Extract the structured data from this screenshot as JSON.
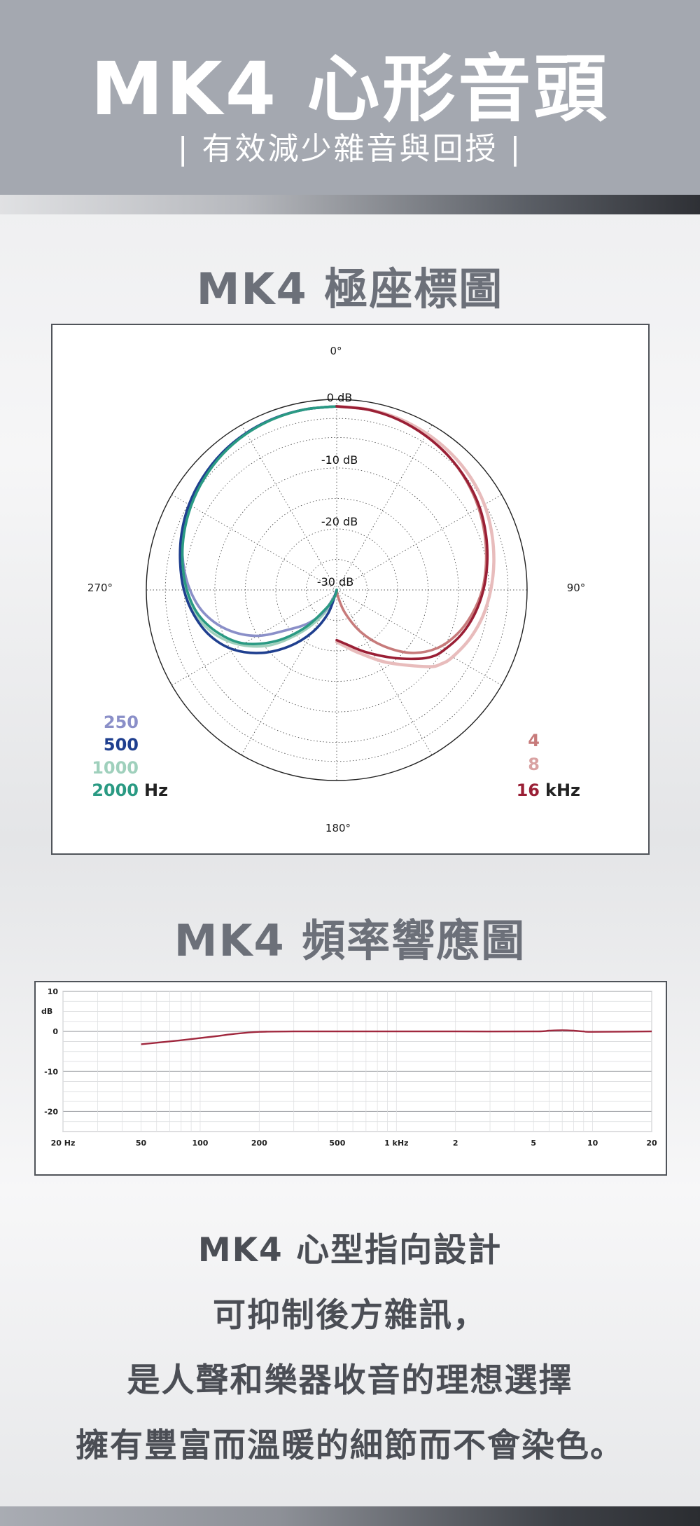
{
  "header": {
    "title": "MK4 心形音頭",
    "subtitle": "| 有效減少雜音與回授 |"
  },
  "sections": {
    "polar_title": "MK4 極座標圖",
    "freq_title": "MK4 頻率響應圖"
  },
  "captions": [
    "MK4 心型指向設計",
    "可抑制後方雜訊，",
    "是人聲和樂器收音的理想選擇",
    "擁有豐富而溫暖的細節而不會染色。"
  ],
  "colors": {
    "hz_250": "#8a8fc8",
    "hz_500": "#1f3f8f",
    "hz_1000": "#9fd0bc",
    "hz_2000": "#2a9a83",
    "khz_4": "#c77b7b",
    "khz_8": "#e8bcbc",
    "khz_16": "#9a1f35",
    "freq_line": "#a0283e"
  },
  "chart_data": [
    {
      "type": "polar",
      "angle_labels": [
        "0°",
        "90°",
        "180°",
        "270°"
      ],
      "radial_labels": [
        "0 dB",
        "-10 dB",
        "-20 dB",
        "-30 dB"
      ],
      "rlim_db": [
        -30,
        0
      ],
      "grid": true,
      "legend_left": {
        "entries": [
          "250",
          "500",
          "1000",
          "2000"
        ],
        "unit": "Hz",
        "placement": "bottom-left"
      },
      "legend_right": {
        "entries": [
          "4",
          "8",
          "16"
        ],
        "unit": "kHz",
        "placement": "bottom-right"
      },
      "series": [
        {
          "name": "250",
          "side": "left",
          "angles": [
            180,
            200,
            210,
            220,
            230,
            240,
            250,
            260,
            270,
            280,
            290,
            300,
            310,
            320,
            330,
            340,
            350,
            360
          ],
          "db": [
            -30,
            -29,
            -26,
            -23,
            -20,
            -15,
            -11,
            -8,
            -6,
            -4.5,
            -3.2,
            -2.2,
            -1.4,
            -0.8,
            -0.4,
            -0.15,
            -0.05,
            0
          ]
        },
        {
          "name": "500",
          "side": "left",
          "angles": [
            180,
            200,
            210,
            220,
            230,
            240,
            250,
            260,
            270,
            280,
            290,
            300,
            310,
            320,
            330,
            340,
            350,
            360
          ],
          "db": [
            -30,
            -26,
            -22,
            -18,
            -14,
            -10.5,
            -8,
            -6.3,
            -5,
            -4,
            -3,
            -2.1,
            -1.4,
            -0.8,
            -0.4,
            -0.15,
            -0.05,
            0
          ]
        },
        {
          "name": "1000",
          "side": "left",
          "angles": [
            180,
            200,
            210,
            220,
            230,
            240,
            250,
            260,
            270,
            280,
            290,
            300,
            310,
            320,
            330,
            340,
            350,
            360
          ],
          "db": [
            -30,
            -28,
            -25,
            -21,
            -16,
            -12,
            -8.8,
            -6.6,
            -5.2,
            -4.2,
            -3.2,
            -2.3,
            -1.5,
            -0.9,
            -0.45,
            -0.2,
            -0.05,
            0
          ]
        },
        {
          "name": "2000",
          "side": "left",
          "angles": [
            180,
            190,
            200,
            210,
            220,
            230,
            240,
            250,
            260,
            270,
            280,
            290,
            300,
            310,
            320,
            330,
            340,
            350,
            360
          ],
          "db": [
            -30,
            -29.5,
            -28.5,
            -26.5,
            -22,
            -17,
            -12.5,
            -9.4,
            -7,
            -5.5,
            -4.4,
            -3.4,
            -2.5,
            -1.7,
            -1,
            -0.5,
            -0.2,
            -0.05,
            0
          ]
        },
        {
          "name": "4",
          "side": "right",
          "angles": [
            0,
            10,
            20,
            30,
            40,
            50,
            60,
            70,
            80,
            90,
            100,
            110,
            120,
            130,
            140,
            150,
            160,
            170,
            180
          ],
          "db": [
            0,
            -0.1,
            -0.4,
            -0.9,
            -1.5,
            -2.3,
            -3.2,
            -4.2,
            -5.2,
            -6.2,
            -7.5,
            -9,
            -11,
            -14,
            -18,
            -22,
            -26,
            -29,
            -30
          ]
        },
        {
          "name": "8",
          "side": "right",
          "angles": [
            0,
            10,
            20,
            30,
            40,
            50,
            60,
            70,
            80,
            90,
            100,
            110,
            120,
            125,
            130,
            145,
            160,
            170,
            180
          ],
          "db": [
            0,
            -0.05,
            -0.2,
            -0.5,
            -0.9,
            -1.4,
            -2.1,
            -3,
            -3.9,
            -4.8,
            -5.7,
            -6.8,
            -8.1,
            -9,
            -10.5,
            -15.5,
            -19,
            -20.5,
            -21.5
          ]
        },
        {
          "name": "16",
          "side": "right",
          "angles": [
            0,
            10,
            20,
            30,
            40,
            50,
            60,
            70,
            80,
            90,
            100,
            110,
            120,
            125,
            130,
            140,
            155,
            170,
            180
          ],
          "db": [
            0,
            -0.1,
            -0.4,
            -0.9,
            -1.5,
            -2.2,
            -3,
            -4,
            -5,
            -6,
            -7.1,
            -8.4,
            -10,
            -11,
            -12.5,
            -15.5,
            -18.8,
            -21,
            -21.8
          ]
        }
      ]
    },
    {
      "type": "line",
      "xlabel_ticks": [
        "20 Hz",
        "50",
        "100",
        "200",
        "500",
        "1 kHz",
        "2",
        "5",
        "10",
        "20"
      ],
      "x_tick_values": [
        20,
        50,
        100,
        200,
        500,
        1000,
        2000,
        5000,
        10000,
        20000
      ],
      "ylabel": "dB",
      "y_tick_labels": [
        "10",
        "0",
        "-10",
        "-20"
      ],
      "y_tick_values": [
        10,
        0,
        -10,
        -20
      ],
      "xscale": "log",
      "xlim": [
        20,
        20000
      ],
      "ylim": [
        -25,
        10
      ],
      "grid": true,
      "series": [
        {
          "x": [
            50,
            80,
            120,
            150,
            200,
            300,
            500,
            1000,
            2000,
            5000,
            6000,
            7000,
            8000,
            9000,
            10000,
            20000
          ],
          "y": [
            -3.2,
            -2.2,
            -1.2,
            -0.6,
            -0.1,
            0,
            0,
            0,
            0,
            0,
            0.2,
            0.3,
            0.2,
            0,
            -0.1,
            0
          ]
        }
      ]
    }
  ]
}
